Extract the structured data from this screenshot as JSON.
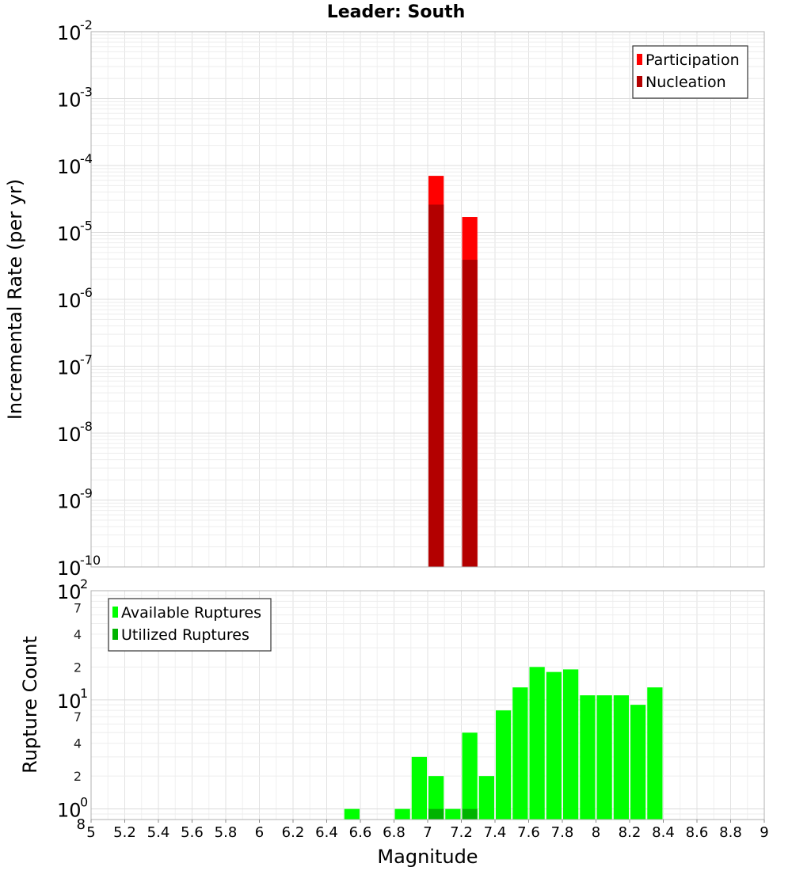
{
  "chart_data": [
    {
      "type": "bar",
      "title": "Leader: South",
      "xlabel": "",
      "ylabel": "Incremental Rate (per yr)",
      "yscale": "log",
      "ylim": [
        1e-10,
        0.01
      ],
      "xlim": [
        5,
        9
      ],
      "bin_width": 0.1,
      "grid": true,
      "legend_position": "top-right",
      "y_ticks": [
        {
          "base": "10",
          "exp": "-10",
          "value": 1e-10
        },
        {
          "base": "10",
          "exp": "-9",
          "value": 1e-09
        },
        {
          "base": "10",
          "exp": "-8",
          "value": 1e-08
        },
        {
          "base": "10",
          "exp": "-7",
          "value": 1e-07
        },
        {
          "base": "10",
          "exp": "-6",
          "value": 1e-06
        },
        {
          "base": "10",
          "exp": "-5",
          "value": 1e-05
        },
        {
          "base": "10",
          "exp": "-4",
          "value": 0.0001
        },
        {
          "base": "10",
          "exp": "-3",
          "value": 0.001
        },
        {
          "base": "10",
          "exp": "-2",
          "value": 0.01
        }
      ],
      "series": [
        {
          "name": "Participation",
          "color": "#ff0000",
          "x": [
            7.05,
            7.25
          ],
          "values": [
            7e-05,
            1.7e-05
          ]
        },
        {
          "name": "Nucleation",
          "color": "#b30000",
          "x": [
            7.05,
            7.25
          ],
          "values": [
            2.6e-05,
            3.9e-06
          ]
        }
      ]
    },
    {
      "type": "bar",
      "title": "",
      "xlabel": "Magnitude",
      "ylabel": "Rupture Count",
      "yscale": "log",
      "ylim": [
        0.8,
        100
      ],
      "xlim": [
        5,
        9
      ],
      "bin_width": 0.1,
      "grid": true,
      "legend_position": "top-left",
      "x_ticks": [
        "5",
        "5.2",
        "5.4",
        "5.6",
        "5.8",
        "6",
        "6.2",
        "6.4",
        "6.6",
        "6.8",
        "7",
        "7.2",
        "7.4",
        "7.6",
        "7.8",
        "8",
        "8.2",
        "8.4",
        "8.6",
        "8.8",
        "9"
      ],
      "y_major_ticks": [
        {
          "base": "10",
          "exp": "0",
          "value": 1
        },
        {
          "base": "10",
          "exp": "1",
          "value": 10
        },
        {
          "base": "10",
          "exp": "2",
          "value": 100
        }
      ],
      "y_minor_ticks": [
        {
          "label": "8",
          "value": 0.8
        },
        {
          "label": "2",
          "value": 2
        },
        {
          "label": "4",
          "value": 4
        },
        {
          "label": "7",
          "value": 7
        },
        {
          "label": "2",
          "value": 20
        },
        {
          "label": "4",
          "value": 40
        },
        {
          "label": "7",
          "value": 70
        }
      ],
      "series": [
        {
          "name": "Available Ruptures",
          "color": "#00ff00",
          "x": [
            6.55,
            6.85,
            6.95,
            7.05,
            7.15,
            7.25,
            7.35,
            7.45,
            7.55,
            7.65,
            7.75,
            7.85,
            7.95,
            8.05,
            8.15,
            8.25,
            8.35
          ],
          "values": [
            1,
            1,
            3,
            2,
            1,
            5,
            2,
            8,
            13,
            20,
            18,
            19,
            11,
            11,
            11,
            9,
            13
          ]
        },
        {
          "name": "Utilized Ruptures",
          "color": "#00b300",
          "x": [
            7.05,
            7.25
          ],
          "values": [
            1,
            1
          ]
        }
      ]
    }
  ]
}
